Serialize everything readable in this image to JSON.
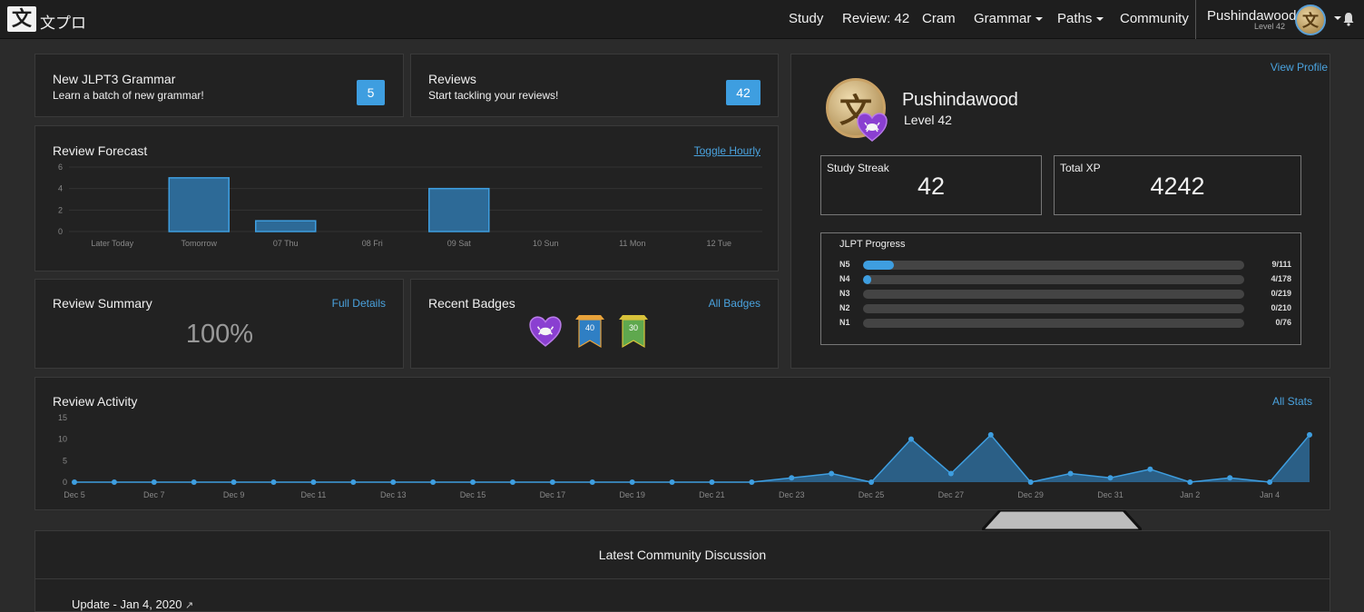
{
  "nav": {
    "logo_glyph": "文",
    "logo_text": "文プロ",
    "items": [
      "Study",
      "Review: 42",
      "Cram",
      "Grammar",
      "Paths",
      "Community"
    ],
    "user_name": "Pushindawood",
    "user_level": "Level 42"
  },
  "new_grammar": {
    "title": "New JLPT3 Grammar",
    "subtitle": "Learn a batch of new grammar!",
    "count": "5"
  },
  "reviews": {
    "title": "Reviews",
    "subtitle": "Start tackling your reviews!",
    "count": "42"
  },
  "forecast": {
    "title": "Review Forecast",
    "toggle": "Toggle Hourly",
    "y_ticks": [
      "6",
      "4",
      "2",
      "0"
    ],
    "x_labels": [
      "Later Today",
      "Tomorrow",
      "07 Thu",
      "08 Fri",
      "09 Sat",
      "10 Sun",
      "11 Mon",
      "12 Tue"
    ]
  },
  "summary": {
    "title": "Review Summary",
    "link": "Full Details",
    "value": "100%"
  },
  "badges": {
    "title": "Recent Badges",
    "link": "All Badges",
    "items": [
      {
        "icon": "crab-heart-badge-icon"
      },
      {
        "icon": "ribbon-40-badge-icon",
        "label": "40"
      },
      {
        "icon": "ribbon-30-badge-icon",
        "label": "30"
      }
    ]
  },
  "profile": {
    "view_link": "View Profile",
    "name": "Pushindawood",
    "level": "Level 42",
    "streak_label": "Study Streak",
    "streak_value": "42",
    "xp_label": "Total XP",
    "xp_value": "4242",
    "jlpt_title": "JLPT Progress",
    "jlpt": [
      {
        "level": "N5",
        "count": "9/111",
        "done": 9,
        "total": 111
      },
      {
        "level": "N4",
        "count": "4/178",
        "done": 4,
        "total": 178
      },
      {
        "level": "N3",
        "count": "0/219",
        "done": 0,
        "total": 219
      },
      {
        "level": "N2",
        "count": "0/210",
        "done": 0,
        "total": 210
      },
      {
        "level": "N1",
        "count": "0/76",
        "done": 0,
        "total": 76
      }
    ]
  },
  "activity": {
    "title": "Review Activity",
    "link": "All Stats",
    "y_ticks": [
      "15",
      "10",
      "5",
      "0"
    ],
    "x_labels": [
      "Dec 5",
      "Dec 7",
      "Dec 9",
      "Dec 11",
      "Dec 13",
      "Dec 15",
      "Dec 17",
      "Dec 19",
      "Dec 21",
      "Dec 23",
      "Dec 25",
      "Dec 27",
      "Dec 29",
      "Dec 31",
      "Jan 2",
      "Jan 4"
    ]
  },
  "community": {
    "title": "Latest Community Discussion",
    "first_post": "Update - Jan 4, 2020"
  },
  "colors": {
    "accent": "#3e9ee0",
    "bar_fill": "#2d6a97",
    "bar_stroke": "#3e9ee0",
    "area_fill": "#2b5f86"
  },
  "chart_data": [
    {
      "type": "bar",
      "title": "Review Forecast",
      "categories": [
        "Later Today",
        "Tomorrow",
        "07 Thu",
        "08 Fri",
        "09 Sat",
        "10 Sun",
        "11 Mon",
        "12 Tue"
      ],
      "values": [
        0,
        5,
        1,
        0,
        4,
        0,
        0,
        0
      ],
      "ylim": [
        0,
        6
      ],
      "grid": true
    },
    {
      "type": "area",
      "title": "Review Activity",
      "x": [
        "Dec 5",
        "Dec 6",
        "Dec 7",
        "Dec 8",
        "Dec 9",
        "Dec 10",
        "Dec 11",
        "Dec 12",
        "Dec 13",
        "Dec 14",
        "Dec 15",
        "Dec 16",
        "Dec 17",
        "Dec 18",
        "Dec 19",
        "Dec 20",
        "Dec 21",
        "Dec 22",
        "Dec 23",
        "Dec 24",
        "Dec 25",
        "Dec 26",
        "Dec 27",
        "Dec 28",
        "Dec 29",
        "Dec 30",
        "Dec 31",
        "Jan 1",
        "Jan 2",
        "Jan 3",
        "Jan 4",
        "Jan 5"
      ],
      "values": [
        0,
        0,
        0,
        0,
        0,
        0,
        0,
        0,
        0,
        0,
        0,
        0,
        0,
        0,
        0,
        0,
        0,
        0,
        1,
        2,
        0,
        10,
        2,
        11,
        0,
        2,
        1,
        3,
        0,
        1,
        0,
        11
      ],
      "ylim": [
        0,
        15
      ],
      "grid": false
    }
  ]
}
